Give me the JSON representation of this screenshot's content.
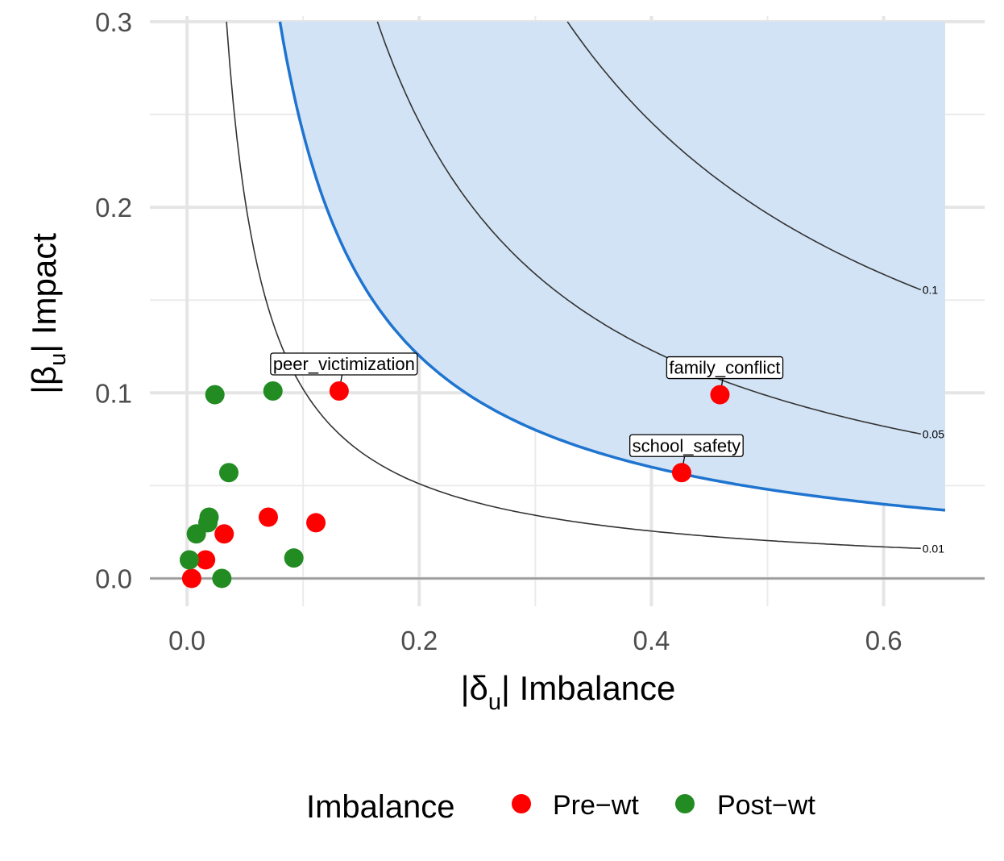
{
  "chart_data": {
    "type": "scatter",
    "xlabel": {
      "pre": "|δ",
      "sub": "u",
      "post": "| Imbalance"
    },
    "ylabel": {
      "pre": "|β",
      "sub": "u",
      "post": "| Impact"
    },
    "xlim": [
      -0.032,
      0.687
    ],
    "ylim": [
      -0.015,
      0.303
    ],
    "x_ticks": [
      {
        "value": 0.0,
        "label": "0.0"
      },
      {
        "value": 0.2,
        "label": "0.2"
      },
      {
        "value": 0.4,
        "label": "0.4"
      },
      {
        "value": 0.6,
        "label": "0.6"
      }
    ],
    "y_ticks": [
      {
        "value": 0.0,
        "label": "0.0"
      },
      {
        "value": 0.1,
        "label": "0.1"
      },
      {
        "value": 0.2,
        "label": "0.2"
      },
      {
        "value": 0.3,
        "label": "0.3"
      }
    ],
    "x_minor": [
      0.1,
      0.3,
      0.5
    ],
    "y_minor": [
      0.05,
      0.15,
      0.25
    ],
    "grid": true,
    "region": {
      "threshold": 0.024,
      "x_max": 0.653,
      "y_max": 0.3,
      "fill": "#d2e3f5",
      "line": "#1f74d0"
    },
    "contours": [
      {
        "label": "0.01",
        "level": 0.0102
      },
      {
        "label": "0.05",
        "level": 0.0492
      },
      {
        "label": "0.1",
        "level": 0.0983
      }
    ],
    "legend": {
      "title": "Imbalance",
      "position": "bottom",
      "items": [
        {
          "label": "Pre−wt",
          "color": "#ff0000"
        },
        {
          "label": "Post−wt",
          "color": "#228b22"
        }
      ]
    },
    "series": [
      {
        "name": "Pre−wt",
        "color": "#ff0000",
        "points": [
          {
            "x": 0.131,
            "y": 0.101,
            "label": "peer_victimization"
          },
          {
            "x": 0.459,
            "y": 0.099,
            "label": "family_conflict"
          },
          {
            "x": 0.426,
            "y": 0.057,
            "label": "school_safety"
          },
          {
            "x": 0.07,
            "y": 0.033
          },
          {
            "x": 0.111,
            "y": 0.03
          },
          {
            "x": 0.032,
            "y": 0.024
          },
          {
            "x": 0.016,
            "y": 0.01
          },
          {
            "x": 0.004,
            "y": 0.0
          }
        ]
      },
      {
        "name": "Post−wt",
        "color": "#228b22",
        "points": [
          {
            "x": 0.024,
            "y": 0.099
          },
          {
            "x": 0.074,
            "y": 0.101
          },
          {
            "x": 0.036,
            "y": 0.057
          },
          {
            "x": 0.019,
            "y": 0.033
          },
          {
            "x": 0.018,
            "y": 0.03
          },
          {
            "x": 0.008,
            "y": 0.024
          },
          {
            "x": 0.002,
            "y": 0.01
          },
          {
            "x": 0.092,
            "y": 0.011
          },
          {
            "x": 0.03,
            "y": 0.0
          }
        ]
      }
    ]
  }
}
